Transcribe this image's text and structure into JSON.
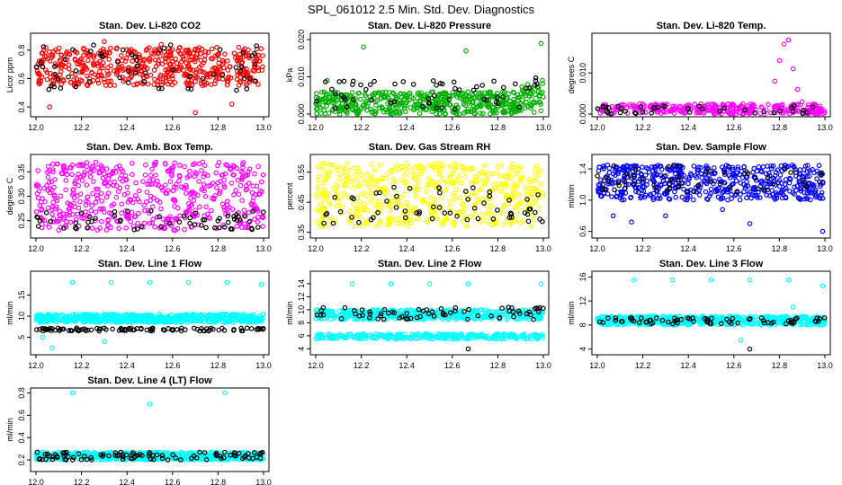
{
  "figure": {
    "title": "SPL_061012  2.5 Min. Std. Dev. Diagnostics"
  },
  "chart_data": [
    {
      "type": "scatter",
      "title": "Stan. Dev. Li-820 CO2",
      "ylabel": "Licor ppm",
      "xlabel": "",
      "xlim": [
        12.0,
        13.0
      ],
      "xticks": [
        "12.0",
        "12.2",
        "12.4",
        "12.6",
        "12.8",
        "13.0"
      ],
      "ylim": [
        0.35,
        0.9
      ],
      "yticks": [
        "0.4",
        "0.6",
        "0.8"
      ],
      "series": [
        {
          "name": "primary",
          "color": "#ff0000",
          "count": 520,
          "band": [
            0.55,
            0.82
          ],
          "outliers": [
            [
              12.06,
              0.4
            ],
            [
              12.7,
              0.36
            ],
            [
              12.86,
              0.42
            ],
            [
              12.3,
              0.86
            ],
            [
              12.55,
              0.84
            ]
          ]
        },
        {
          "name": "black",
          "color": "#000000",
          "count": 60,
          "band": [
            0.5,
            0.85
          ],
          "outliers": []
        }
      ]
    },
    {
      "type": "scatter",
      "title": "Stan. Dev. Li-820 Pressure",
      "ylabel": "kPa",
      "xlabel": "",
      "xlim": [
        12.0,
        13.0
      ],
      "xticks": [
        "12.0",
        "12.2",
        "12.4",
        "12.6",
        "12.8",
        "13.0"
      ],
      "ylim": [
        0,
        0.021
      ],
      "yticks": [
        "0.000",
        "0.010",
        "0.020"
      ],
      "series": [
        {
          "name": "primary",
          "color": "#00b000",
          "count": 520,
          "band": [
            0.0,
            0.006
          ],
          "outliers": [
            [
              12.21,
              0.018
            ],
            [
              12.66,
              0.017
            ],
            [
              12.99,
              0.019
            ],
            [
              12.05,
              0.009
            ],
            [
              12.93,
              0.008
            ]
          ]
        },
        {
          "name": "black",
          "color": "#000000",
          "count": 60,
          "band": [
            0.001,
            0.009
          ],
          "outliers": []
        }
      ]
    },
    {
      "type": "scatter",
      "title": "Stan. Dev. Li-820 Temp.",
      "ylabel": "degrees C",
      "xlabel": "",
      "xlim": [
        12.0,
        13.0
      ],
      "xticks": [
        "12.0",
        "12.2",
        "12.4",
        "12.6",
        "12.8",
        "13.0"
      ],
      "ylim": [
        0,
        0.019
      ],
      "yticks": [
        "0.000",
        "0.010"
      ],
      "series": [
        {
          "name": "primary",
          "color": "#ff00ff",
          "count": 300,
          "band": [
            0.0,
            0.0025
          ],
          "outliers": [
            [
              12.78,
              0.008
            ],
            [
              12.8,
              0.013
            ],
            [
              12.82,
              0.017
            ],
            [
              12.84,
              0.018
            ],
            [
              12.86,
              0.011
            ],
            [
              12.88,
              0.006
            ],
            [
              12.9,
              0.003
            ]
          ]
        },
        {
          "name": "black",
          "color": "#000000",
          "count": 40,
          "band": [
            0.0,
            0.002
          ],
          "outliers": []
        }
      ]
    },
    {
      "type": "scatter",
      "title": "Stan. Dev. Amb. Box Temp.",
      "ylabel": "degrees C",
      "xlabel": "",
      "xlim": [
        12.0,
        13.0
      ],
      "xticks": [
        "12.0",
        "12.2",
        "12.4",
        "12.6",
        "12.8",
        "13.0"
      ],
      "ylim": [
        0.22,
        0.38
      ],
      "yticks": [
        "0.25",
        "0.30",
        "0.35"
      ],
      "series": [
        {
          "name": "primary",
          "color": "#ff00ff",
          "count": 520,
          "band": [
            0.23,
            0.37
          ],
          "outliers": []
        },
        {
          "name": "black",
          "color": "#000000",
          "count": 60,
          "band": [
            0.23,
            0.27
          ],
          "outliers": []
        }
      ]
    },
    {
      "type": "scatter",
      "title": "Stan. Dev. Gas Stream RH",
      "ylabel": "percent",
      "xlabel": "",
      "xlim": [
        12.0,
        13.0
      ],
      "xticks": [
        "12.0",
        "12.2",
        "12.4",
        "12.6",
        "12.8",
        "13.0"
      ],
      "ylim": [
        0.34,
        0.6
      ],
      "yticks": [
        "0.35",
        "0.45",
        "0.55"
      ],
      "series": [
        {
          "name": "primary",
          "color": "#ffff00",
          "count": 520,
          "band": [
            0.37,
            0.58
          ],
          "outliers": []
        },
        {
          "name": "black",
          "color": "#000000",
          "count": 60,
          "band": [
            0.38,
            0.5
          ],
          "outliers": []
        }
      ]
    },
    {
      "type": "scatter",
      "title": "Stan. Dev. Sample Flow",
      "ylabel": "ml/min",
      "xlabel": "",
      "xlim": [
        12.0,
        13.0
      ],
      "xticks": [
        "12.0",
        "12.2",
        "12.4",
        "12.6",
        "12.8",
        "13.0"
      ],
      "ylim": [
        0.55,
        1.55
      ],
      "yticks": [
        "0.6",
        "1.0",
        "1.4"
      ],
      "series": [
        {
          "name": "primary",
          "color": "#0000ff",
          "count": 520,
          "band": [
            1.0,
            1.45
          ],
          "outliers": [
            [
              12.99,
              0.6
            ],
            [
              12.67,
              0.7
            ],
            [
              12.15,
              0.72
            ],
            [
              12.3,
              0.8
            ],
            [
              12.07,
              0.8
            ],
            [
              12.55,
              0.88
            ]
          ]
        },
        {
          "name": "black",
          "color": "#000000",
          "count": 60,
          "band": [
            1.1,
            1.45
          ],
          "outliers": []
        }
      ]
    },
    {
      "type": "scatter",
      "title": "Stan. Dev. Line 1 Flow",
      "ylabel": "ml/min",
      "xlabel": "",
      "xlim": [
        12.0,
        13.0
      ],
      "xticks": [
        "12.0",
        "12.2",
        "12.4",
        "12.6",
        "12.8",
        "13.0"
      ],
      "ylim": [
        1.5,
        20
      ],
      "yticks": [
        "5",
        "10",
        "15"
      ],
      "series": [
        {
          "name": "primary",
          "color": "#00ffff",
          "count": 600,
          "band": [
            8.5,
            10.5
          ],
          "outliers": [
            [
              12.16,
              18
            ],
            [
              12.33,
              18
            ],
            [
              12.5,
              18
            ],
            [
              12.67,
              18
            ],
            [
              12.84,
              18
            ],
            [
              12.99,
              17.5
            ],
            [
              12.07,
              2.5
            ],
            [
              12.03,
              5
            ],
            [
              12.3,
              4
            ]
          ]
        },
        {
          "name": "black",
          "color": "#000000",
          "count": 100,
          "band": [
            6.5,
            7.2
          ],
          "outliers": []
        }
      ]
    },
    {
      "type": "scatter",
      "title": "Stan. Dev. Line 2 Flow",
      "ylabel": "ml/min",
      "xlabel": "",
      "xlim": [
        12.0,
        13.0
      ],
      "xticks": [
        "12.0",
        "12.2",
        "12.4",
        "12.6",
        "12.8",
        "13.0"
      ],
      "ylim": [
        3.5,
        15.5
      ],
      "yticks": [
        "4",
        "6",
        "8",
        "10",
        "12",
        "14"
      ],
      "series": [
        {
          "name": "primary",
          "color": "#00ffff",
          "count": 420,
          "band": [
            8.5,
            10
          ],
          "outliers": [
            [
              12.16,
              14
            ],
            [
              12.33,
              14
            ],
            [
              12.5,
              14
            ],
            [
              12.67,
              14
            ],
            [
              12.99,
              14
            ]
          ]
        },
        {
          "name": "lower band",
          "color": "#00ffff",
          "count": 300,
          "band": [
            5.5,
            6.3
          ],
          "outliers": []
        },
        {
          "name": "black",
          "color": "#000000",
          "count": 70,
          "band": [
            8.5,
            10.5
          ],
          "outliers": [
            [
              12.67,
              4
            ]
          ]
        }
      ]
    },
    {
      "type": "scatter",
      "title": "Stan. Dev. Line 3 Flow",
      "ylabel": "ml/min",
      "xlabel": "",
      "xlim": [
        12.0,
        13.0
      ],
      "xticks": [
        "12.0",
        "12.2",
        "12.4",
        "12.6",
        "12.8",
        "13.0"
      ],
      "ylim": [
        3.5,
        16.5
      ],
      "yticks": [
        "4",
        "8",
        "12",
        "16"
      ],
      "series": [
        {
          "name": "primary",
          "color": "#00ffff",
          "count": 600,
          "band": [
            8,
            9.5
          ],
          "outliers": [
            [
              12.16,
              15.5
            ],
            [
              12.33,
              15.5
            ],
            [
              12.5,
              15.5
            ],
            [
              12.67,
              15.5
            ],
            [
              12.84,
              15.5
            ],
            [
              12.99,
              14.5
            ],
            [
              12.86,
              11
            ],
            [
              12.63,
              5.5
            ]
          ]
        },
        {
          "name": "black",
          "color": "#000000",
          "count": 70,
          "band": [
            8.2,
            9.2
          ],
          "outliers": [
            [
              12.67,
              4
            ]
          ]
        }
      ]
    },
    {
      "type": "scatter",
      "title": "Stan. Dev. Line 4 (LT) Flow",
      "ylabel": "ml/min",
      "xlabel": "",
      "xlim": [
        12.0,
        13.0
      ],
      "xticks": [
        "12.0",
        "12.2",
        "12.4",
        "12.6",
        "12.8",
        "13.0"
      ],
      "ylim": [
        0.12,
        0.82
      ],
      "yticks": [
        "0.2",
        "0.4",
        "0.6",
        "0.8"
      ],
      "series": [
        {
          "name": "primary",
          "color": "#00ffff",
          "count": 600,
          "band": [
            0.2,
            0.27
          ],
          "outliers": [
            [
              12.16,
              0.8
            ],
            [
              12.83,
              0.8
            ],
            [
              12.5,
              0.7
            ]
          ]
        },
        {
          "name": "black",
          "color": "#000000",
          "count": 100,
          "band": [
            0.2,
            0.27
          ],
          "outliers": []
        }
      ]
    }
  ]
}
